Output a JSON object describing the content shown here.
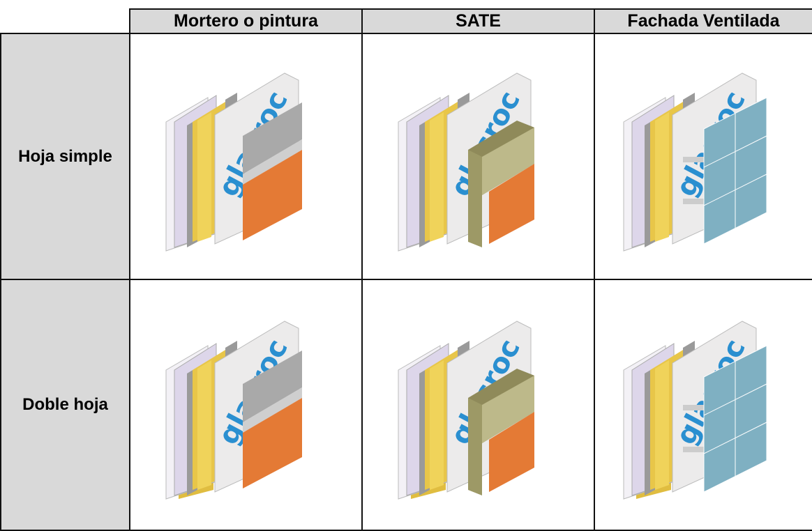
{
  "table": {
    "columns": [
      "Mortero o pintura",
      "SATE",
      "Fachada Ventilada"
    ],
    "rows": [
      {
        "label": "Hoja simple"
      },
      {
        "label": "Doble hoja"
      }
    ]
  }
}
